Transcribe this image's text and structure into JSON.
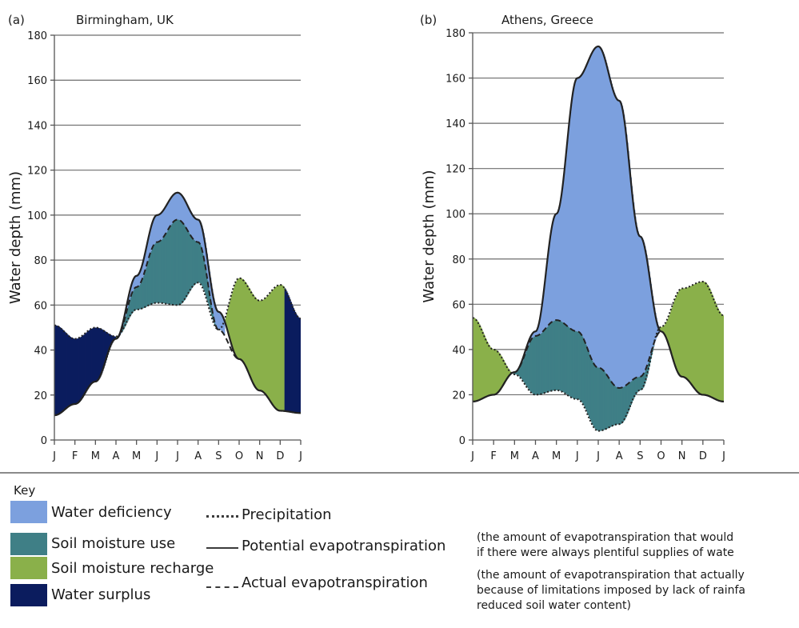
{
  "chart_data": [
    {
      "type": "area",
      "panel_letter": "(a)",
      "title": "Birmingham, UK",
      "ylabel": "Water depth (mm)",
      "ylim": [
        0,
        180
      ],
      "yticks": [
        0,
        20,
        40,
        60,
        80,
        100,
        120,
        140,
        160,
        180
      ],
      "xticks": [
        "J",
        "F",
        "M",
        "A",
        "M",
        "J",
        "J",
        "A",
        "S",
        "O",
        "N",
        "D",
        "J"
      ],
      "grid": true,
      "x": [
        0,
        1,
        2,
        3,
        4,
        5,
        6,
        7,
        8,
        9,
        10,
        11,
        12
      ],
      "series": [
        {
          "name": "Precipitation",
          "values": [
            51,
            45,
            50,
            46,
            58,
            61,
            60,
            70,
            49,
            72,
            62,
            69,
            54
          ]
        },
        {
          "name": "Potential evapotranspiration",
          "values": [
            11,
            16,
            26,
            45,
            73,
            100,
            110,
            98,
            57,
            36,
            22,
            13,
            12
          ]
        },
        {
          "name": "Actual evapotranspiration",
          "values": [
            11,
            16,
            26,
            45,
            68,
            88,
            98,
            88,
            49,
            36,
            22,
            13,
            12
          ]
        }
      ]
    },
    {
      "type": "area",
      "panel_letter": "(b)",
      "title": "Athens, Greece",
      "ylabel": "Water depth (mm)",
      "ylim": [
        0,
        180
      ],
      "yticks": [
        0,
        20,
        40,
        60,
        80,
        100,
        120,
        140,
        160,
        180
      ],
      "xticks": [
        "J",
        "F",
        "M",
        "A",
        "M",
        "J",
        "J",
        "A",
        "S",
        "O",
        "N",
        "D",
        "J"
      ],
      "grid": true,
      "x": [
        0,
        1,
        2,
        3,
        4,
        5,
        6,
        7,
        8,
        9,
        10,
        11,
        12
      ],
      "series": [
        {
          "name": "Precipitation",
          "values": [
            54,
            40,
            29,
            20,
            22,
            18,
            4,
            7,
            22,
            50,
            67,
            70,
            55
          ]
        },
        {
          "name": "Potential evapotranspiration",
          "values": [
            17,
            20,
            30,
            48,
            100,
            160,
            174,
            150,
            90,
            48,
            28,
            20,
            17
          ]
        },
        {
          "name": "Actual evapotranspiration",
          "values": [
            17,
            20,
            30,
            46,
            53,
            48,
            32,
            23,
            28,
            48,
            28,
            20,
            17
          ]
        }
      ]
    }
  ],
  "key": {
    "title": "Key",
    "areas": [
      {
        "label": "Water deficiency",
        "color": "#7ca0de"
      },
      {
        "label": "Soil moisture use",
        "color": "#3f7f86"
      },
      {
        "label": "Soil moisture recharge",
        "color": "#8ab04a"
      },
      {
        "label": "Water surplus",
        "color": "#0b1c5e"
      }
    ],
    "lines": [
      {
        "label": "Precipitation",
        "style": "dotted"
      },
      {
        "label": "Potential evapotranspiration",
        "style": "solid"
      },
      {
        "label": "Actual evapotranspiration",
        "style": "dashed"
      }
    ],
    "notes": [
      {
        "line1": "(the amount of evapotranspiration that would",
        "line2": "if there were always plentiful supplies of wate"
      },
      {
        "line1": "(the amount of evapotranspiration that actually",
        "line2": "because of limitations imposed by lack of rainfa",
        "line3": "reduced soil water content)"
      }
    ]
  }
}
